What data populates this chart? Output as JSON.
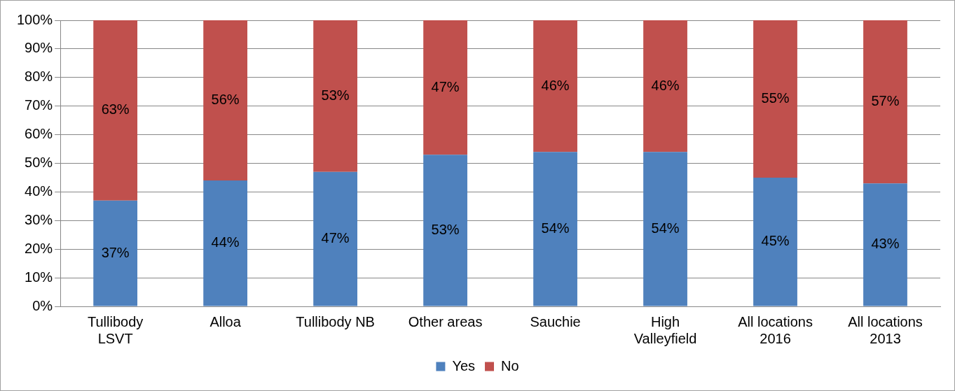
{
  "chart_data": {
    "type": "bar",
    "stacked": true,
    "categories": [
      "Tullibody LSVT",
      "Alloa",
      "Tullibody NB",
      "Other areas",
      "Sauchie",
      "High Valleyfield",
      "All locations 2016",
      "All locations 2013"
    ],
    "series": [
      {
        "name": "Yes",
        "color": "#4f81bd",
        "values": [
          37,
          44,
          47,
          53,
          54,
          54,
          45,
          43
        ],
        "value_labels": [
          "37%",
          "44%",
          "47%",
          "53%",
          "54%",
          "54%",
          "45%",
          "43%"
        ]
      },
      {
        "name": "No",
        "color": "#c0504d",
        "values": [
          63,
          56,
          53,
          47,
          46,
          46,
          55,
          57
        ],
        "value_labels": [
          "63%",
          "56%",
          "53%",
          "47%",
          "46%",
          "46%",
          "55%",
          "57%"
        ]
      }
    ],
    "ylim": [
      0,
      100
    ],
    "yticks": [
      {
        "value": 0,
        "label": "0%"
      },
      {
        "value": 10,
        "label": "10%"
      },
      {
        "value": 20,
        "label": "20%"
      },
      {
        "value": 30,
        "label": "30%"
      },
      {
        "value": 40,
        "label": "40%"
      },
      {
        "value": 50,
        "label": "50%"
      },
      {
        "value": 60,
        "label": "60%"
      },
      {
        "value": 70,
        "label": "70%"
      },
      {
        "value": 80,
        "label": "80%"
      },
      {
        "value": 90,
        "label": "90%"
      },
      {
        "value": 100,
        "label": "100%"
      }
    ],
    "grid": "y",
    "legend": "bottom"
  }
}
